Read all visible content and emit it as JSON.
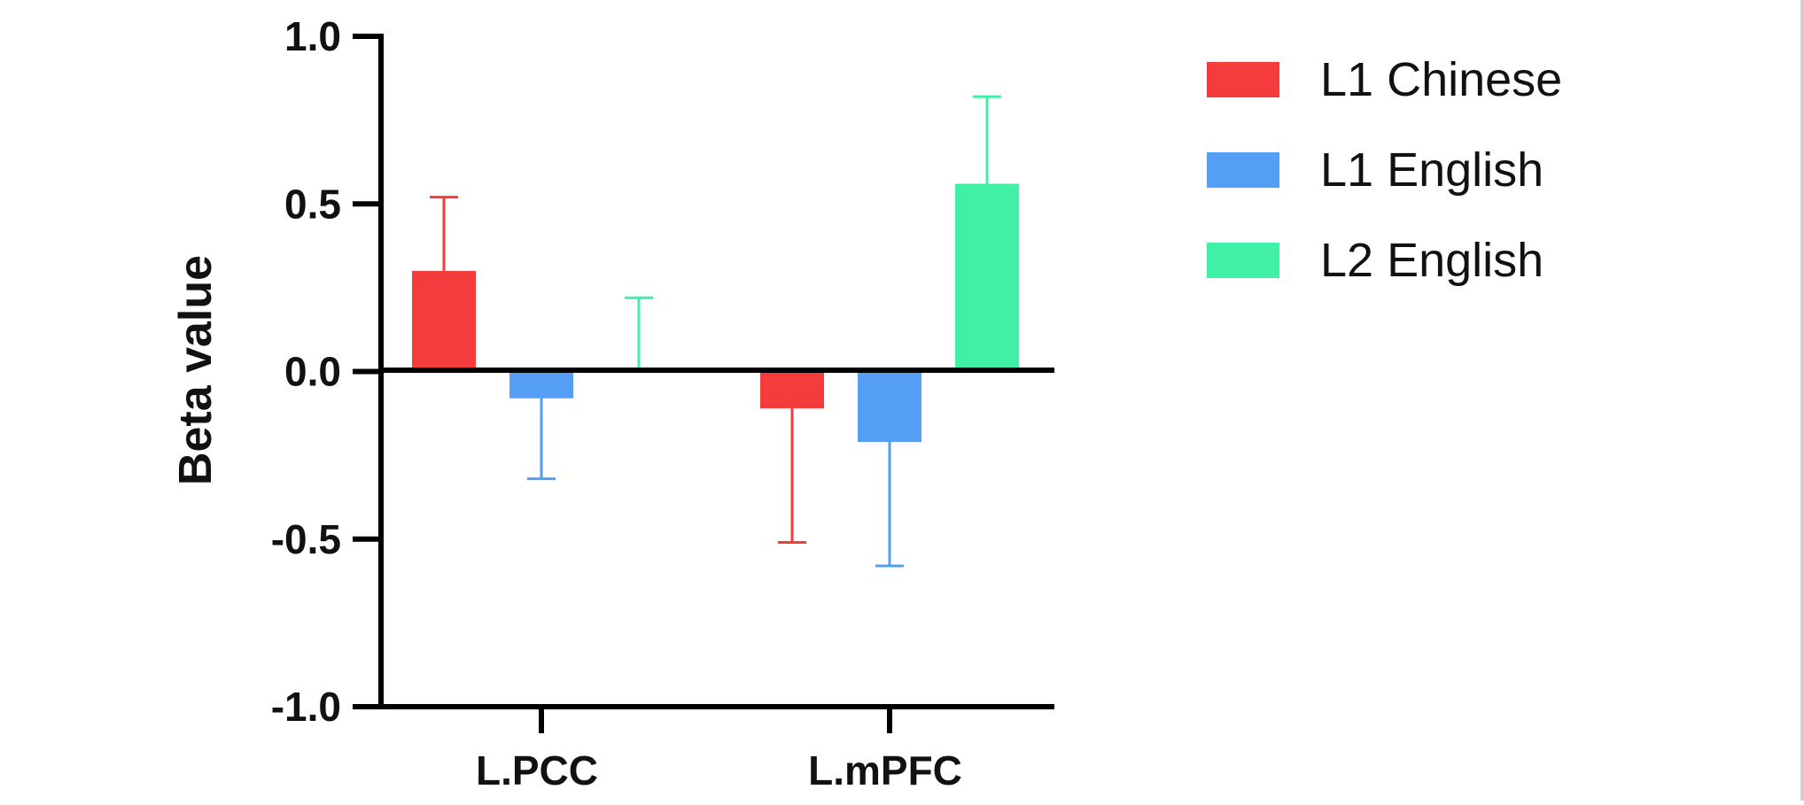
{
  "chart_data": {
    "type": "bar",
    "title": "",
    "xlabel": "",
    "ylabel": "Beta value",
    "ylim": [
      -1.0,
      1.0
    ],
    "yticks": [
      1.0,
      0.5,
      0.0,
      -0.5,
      -1.0
    ],
    "ytick_labels": [
      "1.0",
      "0.5",
      "0.0",
      "-0.5",
      "-1.0"
    ],
    "categories": [
      "L.PCC",
      "L.mPFC"
    ],
    "series": [
      {
        "name": "L1 Chinese",
        "color": "#f43c3c",
        "values": [
          0.3,
          -0.11
        ],
        "error": [
          0.22,
          0.4
        ]
      },
      {
        "name": "L1 English",
        "color": "#559ef5",
        "values": [
          -0.08,
          -0.21
        ],
        "error": [
          0.24,
          0.37
        ]
      },
      {
        "name": "L2 English",
        "color": "#3ff0a6",
        "values": [
          0.0,
          0.56
        ],
        "error": [
          0.22,
          0.26
        ]
      }
    ],
    "legend": {
      "position": "top-right"
    },
    "grid": false
  }
}
